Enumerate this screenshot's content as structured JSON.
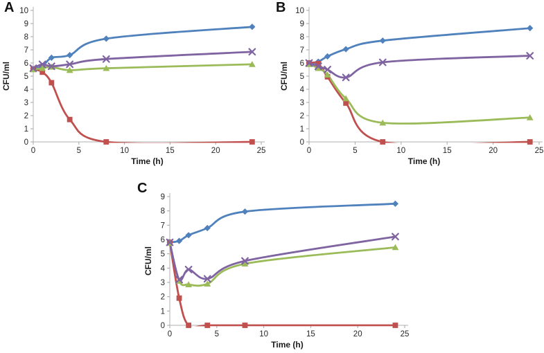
{
  "figure": {
    "background": "#ffffff",
    "axis_line_color": "#bfbfbf",
    "tick_mark_color": "#a6a6a6",
    "tick_label_color": "#262626",
    "axis_title_color": "#1a1a1a",
    "panel_letter_color": "#111111"
  },
  "chart_data": [
    {
      "type": "line",
      "panel_label": "A",
      "xlabel": "Time (h)",
      "ylabel": "CFU/ml",
      "xlim": [
        0,
        25
      ],
      "ylim": [
        0,
        10
      ],
      "xticks": [
        0,
        5,
        10,
        15,
        20,
        25
      ],
      "yticks": [
        0,
        1,
        2,
        3,
        4,
        5,
        6,
        7,
        8,
        9,
        10
      ],
      "grid": false,
      "legend": "none",
      "smooth": true,
      "x": [
        0,
        1,
        2,
        4,
        8,
        24
      ],
      "series": [
        {
          "name": "blue-diamond",
          "marker": "diamond",
          "color": "#4F81BD",
          "values": [
            5.55,
            5.75,
            6.4,
            6.6,
            7.85,
            8.75
          ]
        },
        {
          "name": "red-square",
          "marker": "square",
          "color": "#C0504D",
          "values": [
            5.55,
            5.3,
            4.5,
            1.7,
            0.0,
            0.0
          ]
        },
        {
          "name": "green-triangle",
          "marker": "triangle",
          "color": "#9BBB59",
          "values": [
            5.5,
            5.6,
            5.7,
            5.45,
            5.6,
            5.9
          ]
        },
        {
          "name": "purple-x",
          "marker": "x",
          "color": "#8064A2",
          "values": [
            5.6,
            5.9,
            5.75,
            5.9,
            6.3,
            6.85
          ]
        }
      ]
    },
    {
      "type": "line",
      "panel_label": "B",
      "xlabel": "Time (h)",
      "ylabel": "CFU/ml",
      "xlim": [
        0,
        25
      ],
      "ylim": [
        0,
        10
      ],
      "xticks": [
        0,
        5,
        10,
        15,
        20,
        25
      ],
      "yticks": [
        0,
        1,
        2,
        3,
        4,
        5,
        6,
        7,
        8,
        9,
        10
      ],
      "grid": false,
      "legend": "none",
      "smooth": true,
      "x": [
        0,
        1,
        2,
        4,
        8,
        24
      ],
      "series": [
        {
          "name": "blue-diamond",
          "marker": "diamond",
          "color": "#4F81BD",
          "values": [
            6.0,
            6.1,
            6.5,
            7.05,
            7.7,
            8.65
          ]
        },
        {
          "name": "red-square",
          "marker": "square",
          "color": "#C0504D",
          "values": [
            6.0,
            5.95,
            4.95,
            2.95,
            0.0,
            0.0
          ]
        },
        {
          "name": "green-triangle",
          "marker": "triangle",
          "color": "#9BBB59",
          "values": [
            5.9,
            5.6,
            5.1,
            3.3,
            1.45,
            1.85
          ]
        },
        {
          "name": "purple-x",
          "marker": "x",
          "color": "#8064A2",
          "values": [
            6.0,
            5.75,
            5.5,
            4.9,
            6.05,
            6.55
          ]
        }
      ]
    },
    {
      "type": "line",
      "panel_label": "C",
      "xlabel": "Time (h)",
      "ylabel": "CFU/ml",
      "xlim": [
        0,
        25
      ],
      "ylim": [
        0,
        9
      ],
      "xticks": [
        0,
        5,
        10,
        15,
        20,
        25
      ],
      "yticks": [
        0,
        1,
        2,
        3,
        4,
        5,
        6,
        7,
        8,
        9
      ],
      "grid": false,
      "legend": "none",
      "smooth": true,
      "x": [
        0,
        1,
        2,
        4,
        8,
        24
      ],
      "series": [
        {
          "name": "blue-diamond",
          "marker": "diamond",
          "color": "#4F81BD",
          "values": [
            5.8,
            5.9,
            6.3,
            6.8,
            7.95,
            8.5
          ]
        },
        {
          "name": "red-square",
          "marker": "square",
          "color": "#C0504D",
          "values": [
            5.8,
            1.9,
            0.0,
            0.0,
            0.0,
            0.0
          ]
        },
        {
          "name": "green-triangle",
          "marker": "triangle",
          "color": "#9BBB59",
          "values": [
            5.75,
            3.1,
            2.85,
            2.9,
            4.3,
            5.45
          ]
        },
        {
          "name": "purple-x",
          "marker": "x",
          "color": "#8064A2",
          "values": [
            5.8,
            3.2,
            3.9,
            3.25,
            4.5,
            6.2
          ]
        }
      ]
    }
  ]
}
